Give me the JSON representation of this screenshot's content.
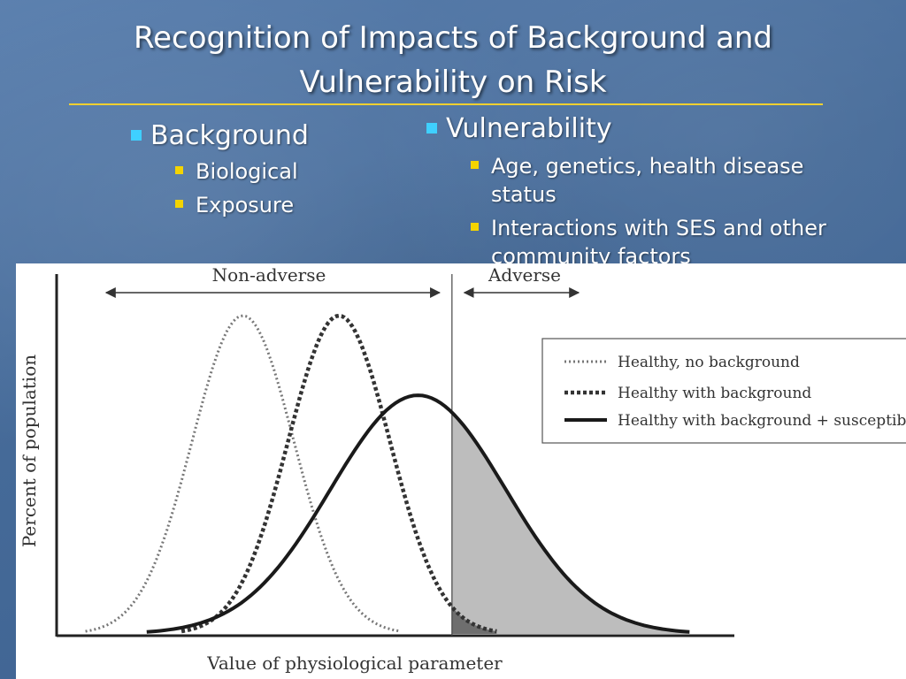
{
  "slide": {
    "title_line1": "Recognition of Impacts of Background and",
    "title_line2": "Vulnerability on Risk",
    "accent_color": "#f0d030",
    "left": {
      "heading": "Background",
      "items": [
        "Biological",
        "Exposure"
      ]
    },
    "right": {
      "heading": "Vulnerability",
      "items": [
        "Age, genetics, health disease",
        "status",
        "Interactions with SES and other",
        "community factors"
      ]
    }
  },
  "chart_data": {
    "type": "line",
    "xlabel": "Value of physiological parameter",
    "ylabel": "Percent of population",
    "region_labels": {
      "left": "Non-adverse",
      "right": "Adverse"
    },
    "threshold_x": 0.7,
    "x_range": [
      0,
      1.2
    ],
    "y_range": [
      0,
      1
    ],
    "legend_position": "top-right",
    "series": [
      {
        "name": "Healthy, no background",
        "style": "dotted",
        "center": 0.33,
        "sd": 0.09,
        "peak": 0.88
      },
      {
        "name": "Healthy with background",
        "style": "dashed",
        "center": 0.5,
        "sd": 0.09,
        "peak": 0.88
      },
      {
        "name": "Healthy with background + susceptible",
        "style": "solid",
        "center": 0.64,
        "sd": 0.155,
        "peak": 0.66
      }
    ],
    "shaded_region": "area under curves beyond threshold (adverse)"
  }
}
